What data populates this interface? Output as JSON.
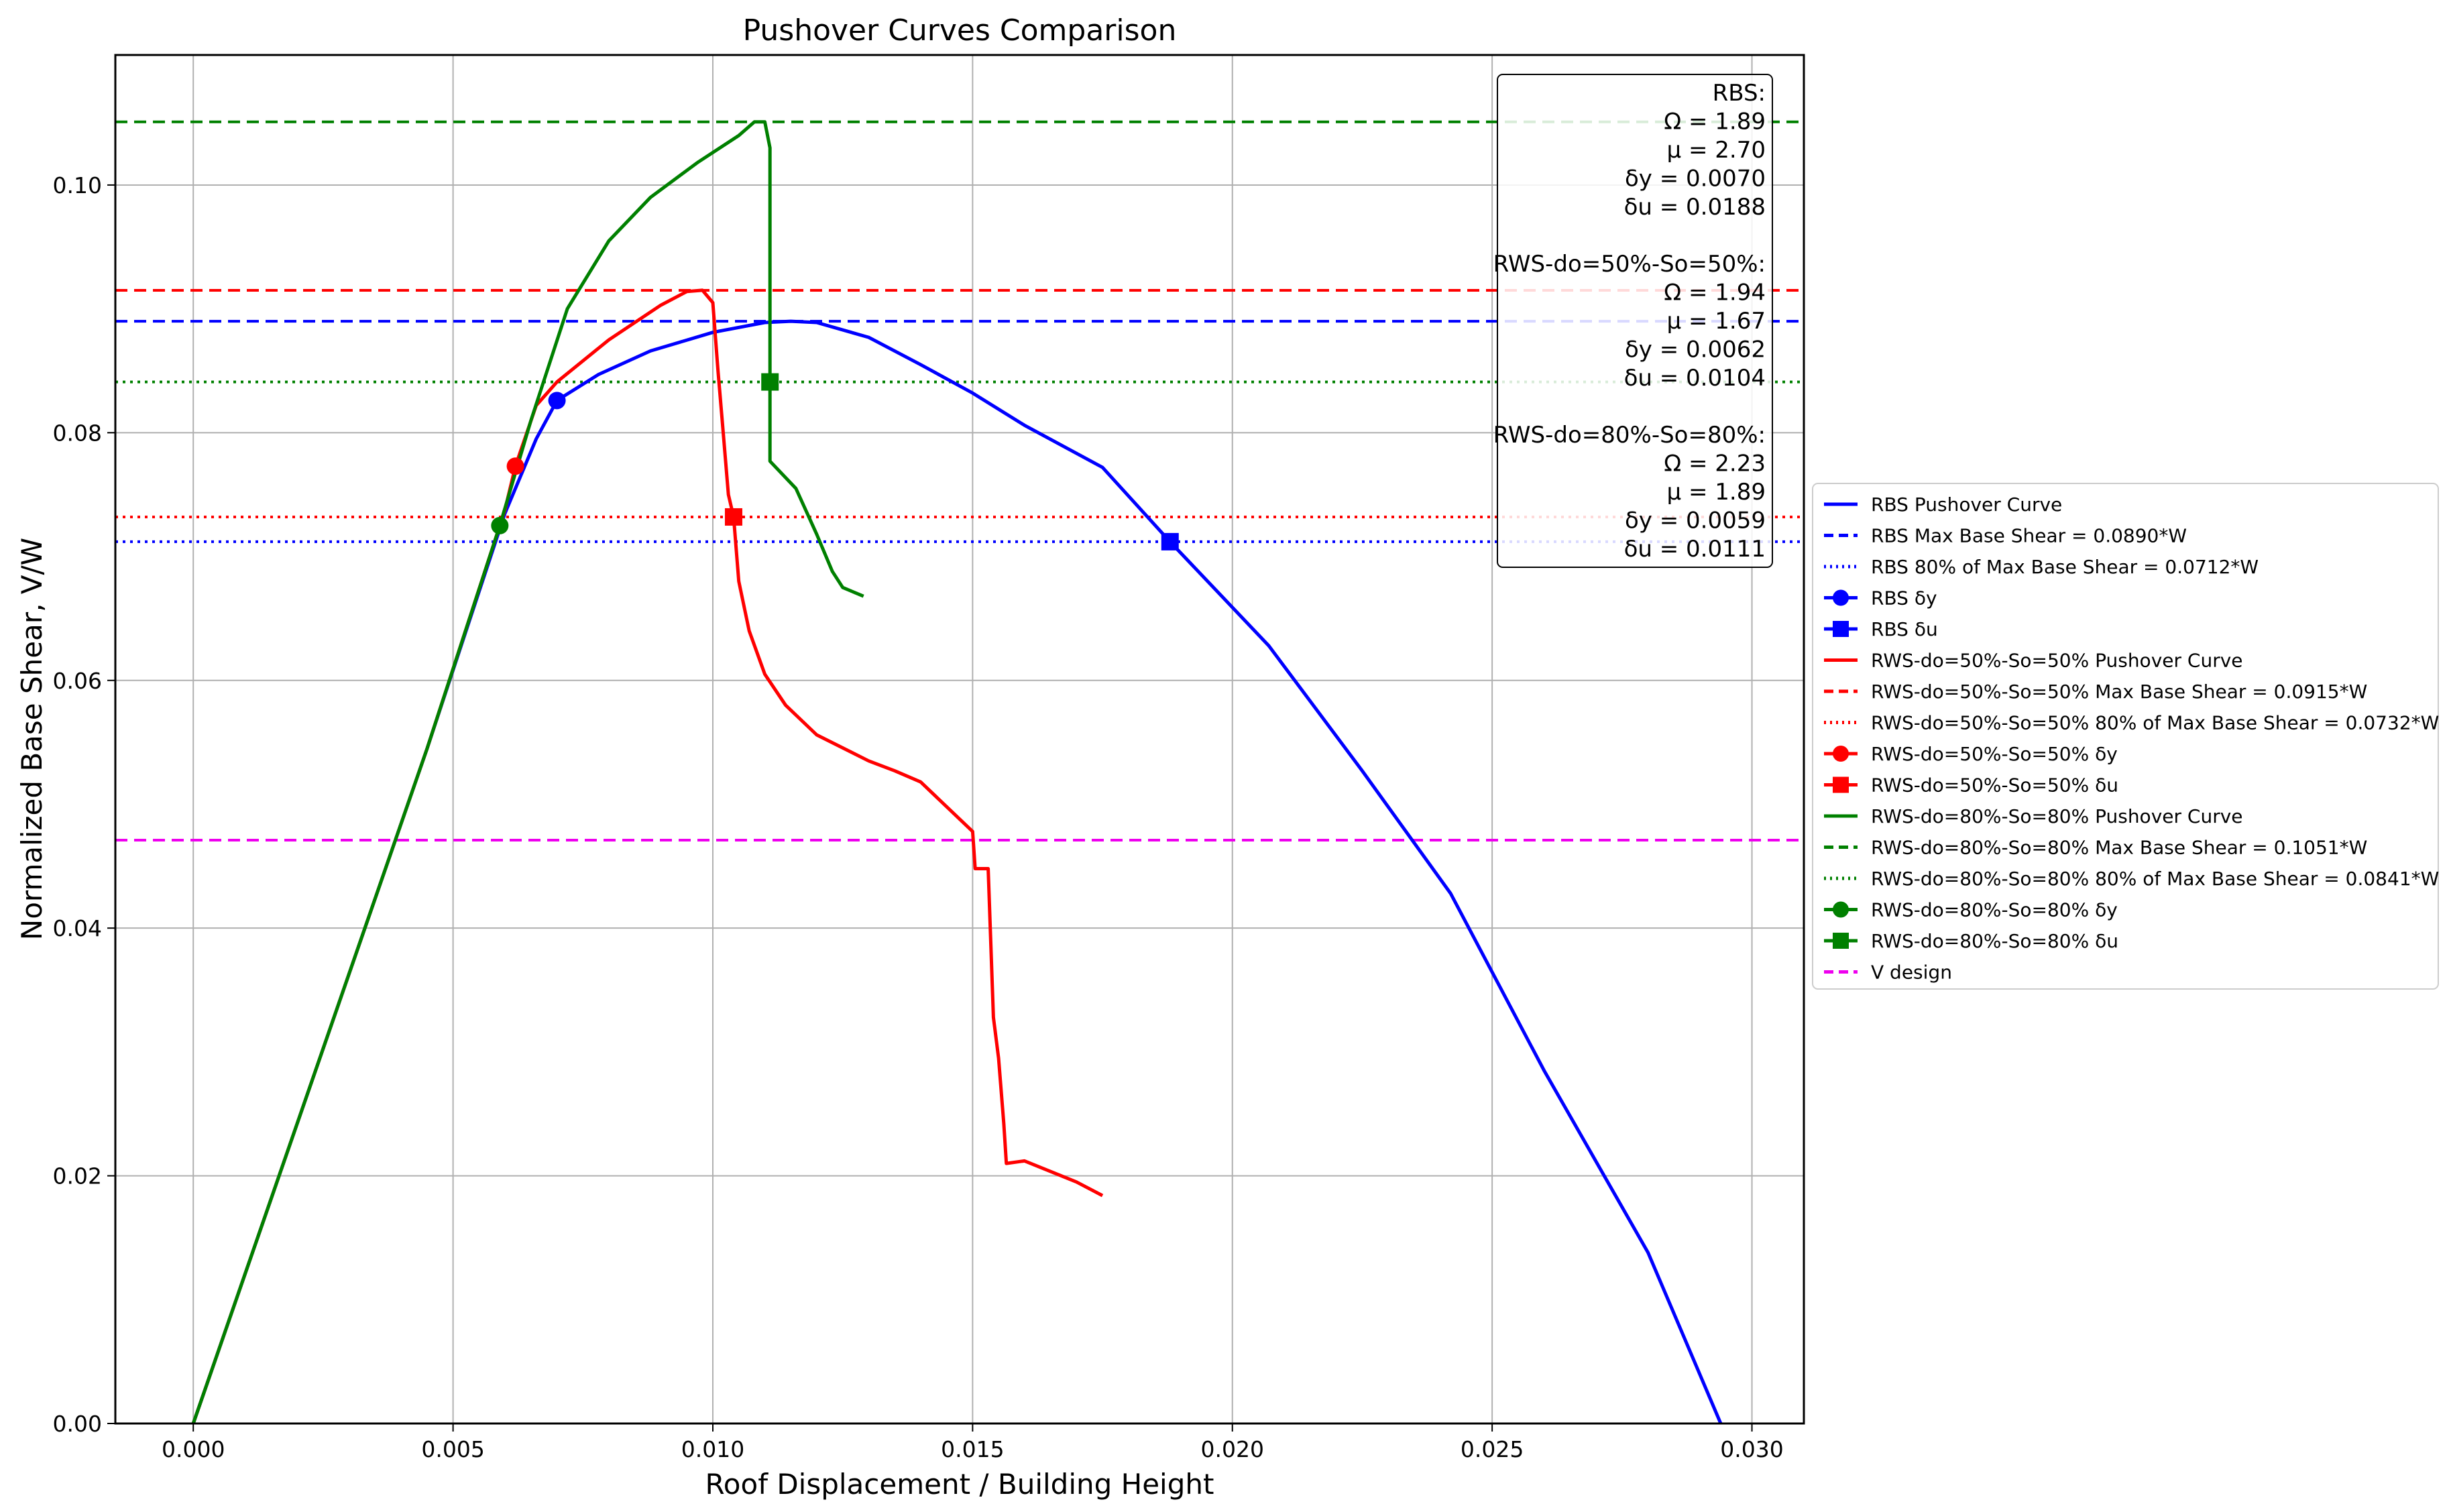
{
  "chart_data": {
    "type": "line",
    "title": "Pushover Curves Comparison",
    "xlabel": "Roof Displacement / Building Height",
    "ylabel": "Normalized Base Shear, V/W",
    "xlim": [
      -0.0015,
      0.031
    ],
    "ylim": [
      0,
      0.1105
    ],
    "x_ticks": [
      0.0,
      0.005,
      0.01,
      0.015,
      0.02,
      0.025,
      0.03
    ],
    "x_tick_labels": [
      "0.000",
      "0.005",
      "0.010",
      "0.015",
      "0.020",
      "0.025",
      "0.030"
    ],
    "y_ticks": [
      0.0,
      0.02,
      0.04,
      0.06,
      0.08,
      0.1
    ],
    "y_tick_labels": [
      "0.00",
      "0.02",
      "0.04",
      "0.06",
      "0.08",
      "0.10"
    ],
    "grid": true,
    "legend_placement": "outside-right",
    "colors": {
      "rbs": "#0000ff",
      "rws50": "#ff0000",
      "rws80": "#008000",
      "vdesign": "#ee00ee"
    },
    "series": [
      {
        "name": "RBS Pushover Curve",
        "kind": "curve",
        "color": "#0000ff",
        "points": [
          [
            0,
            0
          ],
          [
            0.0045,
            0.0545
          ],
          [
            0.006,
            0.0735
          ],
          [
            0.0066,
            0.0795
          ],
          [
            0.007,
            0.0826
          ],
          [
            0.0078,
            0.0847
          ],
          [
            0.0088,
            0.0866
          ],
          [
            0.01,
            0.0881
          ],
          [
            0.011,
            0.0889
          ],
          [
            0.0115,
            0.089
          ],
          [
            0.012,
            0.0889
          ],
          [
            0.013,
            0.0877
          ],
          [
            0.014,
            0.0855
          ],
          [
            0.015,
            0.0832
          ],
          [
            0.016,
            0.0806
          ],
          [
            0.0175,
            0.0772
          ],
          [
            0.0188,
            0.0712
          ],
          [
            0.0207,
            0.0628
          ],
          [
            0.0225,
            0.0527
          ],
          [
            0.0242,
            0.0428
          ],
          [
            0.026,
            0.0285
          ],
          [
            0.028,
            0.0138
          ],
          [
            0.0294,
            0.0
          ]
        ]
      },
      {
        "name": "RBS Max Base Shear = 0.0890*W",
        "kind": "hline",
        "style": "dashed",
        "color": "#0000ff",
        "y": 0.089
      },
      {
        "name": "RBS 80% of Max Base Shear = 0.0712*W",
        "kind": "hline",
        "style": "dotted",
        "color": "#0000ff",
        "y": 0.0712
      },
      {
        "name": "RBS δy",
        "kind": "marker",
        "marker": "circle",
        "color": "#0000ff",
        "x": 0.007,
        "y": 0.0826
      },
      {
        "name": "RBS δu",
        "kind": "marker",
        "marker": "square",
        "color": "#0000ff",
        "x": 0.0188,
        "y": 0.0712
      },
      {
        "name": "RWS-do=50%-So=50% Pushover Curve",
        "kind": "curve",
        "color": "#ff0000",
        "points": [
          [
            0,
            0
          ],
          [
            0.0045,
            0.0545
          ],
          [
            0.006,
            0.0738
          ],
          [
            0.0062,
            0.0773
          ],
          [
            0.0066,
            0.0822
          ],
          [
            0.007,
            0.0841
          ],
          [
            0.008,
            0.0875
          ],
          [
            0.009,
            0.0903
          ],
          [
            0.0095,
            0.0914
          ],
          [
            0.0098,
            0.0915
          ],
          [
            0.01,
            0.0905
          ],
          [
            0.0101,
            0.085
          ],
          [
            0.0102,
            0.08
          ],
          [
            0.0103,
            0.075
          ],
          [
            0.0104,
            0.0732
          ],
          [
            0.0105,
            0.068
          ],
          [
            0.0107,
            0.064
          ],
          [
            0.011,
            0.0605
          ],
          [
            0.0114,
            0.058
          ],
          [
            0.012,
            0.0556
          ],
          [
            0.013,
            0.0535
          ],
          [
            0.0135,
            0.0527
          ],
          [
            0.014,
            0.0518
          ],
          [
            0.015,
            0.0478
          ],
          [
            0.01505,
            0.0448
          ],
          [
            0.0153,
            0.0448
          ],
          [
            0.0154,
            0.0328
          ],
          [
            0.0155,
            0.0295
          ],
          [
            0.0156,
            0.0242
          ],
          [
            0.01565,
            0.021
          ],
          [
            0.016,
            0.0212
          ],
          [
            0.017,
            0.0195
          ],
          [
            0.0175,
            0.0184
          ]
        ]
      },
      {
        "name": "RWS-do=50%-So=50% Max Base Shear = 0.0915*W",
        "kind": "hline",
        "style": "dashed",
        "color": "#ff0000",
        "y": 0.0915
      },
      {
        "name": "RWS-do=50%-So=50% 80% of Max Base Shear = 0.0732*W",
        "kind": "hline",
        "style": "dotted",
        "color": "#ff0000",
        "y": 0.0732
      },
      {
        "name": "RWS-do=50%-So=50% δy",
        "kind": "marker",
        "marker": "circle",
        "color": "#ff0000",
        "x": 0.0062,
        "y": 0.0773
      },
      {
        "name": "RWS-do=50%-So=50% δu",
        "kind": "marker",
        "marker": "square",
        "color": "#ff0000",
        "x": 0.0104,
        "y": 0.0732
      },
      {
        "name": "RWS-do=80%-So=80% Pushover Curve",
        "kind": "curve",
        "color": "#008000",
        "points": [
          [
            0,
            0
          ],
          [
            0.0045,
            0.0545
          ],
          [
            0.0059,
            0.0725
          ],
          [
            0.0065,
            0.081
          ],
          [
            0.0072,
            0.09
          ],
          [
            0.008,
            0.0955
          ],
          [
            0.0088,
            0.099
          ],
          [
            0.0097,
            0.1018
          ],
          [
            0.0105,
            0.104
          ],
          [
            0.0108,
            0.1051
          ],
          [
            0.011,
            0.1051
          ],
          [
            0.0111,
            0.103
          ],
          [
            0.0111,
            0.0841
          ],
          [
            0.0111,
            0.0777
          ],
          [
            0.0116,
            0.0755
          ],
          [
            0.012,
            0.0718
          ],
          [
            0.0123,
            0.0688
          ],
          [
            0.0125,
            0.0675
          ],
          [
            0.0129,
            0.0668
          ]
        ]
      },
      {
        "name": "RWS-do=80%-So=80% Max Base Shear = 0.1051*W",
        "kind": "hline",
        "style": "dashed",
        "color": "#008000",
        "y": 0.1051
      },
      {
        "name": "RWS-do=80%-So=80% 80% of Max Base Shear = 0.0841*W",
        "kind": "hline",
        "style": "dotted",
        "color": "#008000",
        "y": 0.0841
      },
      {
        "name": "RWS-do=80%-So=80% δy",
        "kind": "marker",
        "marker": "circle",
        "color": "#008000",
        "x": 0.0059,
        "y": 0.0725
      },
      {
        "name": "RWS-do=80%-So=80% δu",
        "kind": "marker",
        "marker": "square",
        "color": "#008000",
        "x": 0.0111,
        "y": 0.0841
      },
      {
        "name": "V design",
        "kind": "hline",
        "style": "dashed",
        "color": "#ee00ee",
        "y": 0.0471
      }
    ],
    "annotation": [
      "RBS:",
      "Ω = 1.89",
      "μ = 2.70",
      "δy = 0.0070",
      "δu = 0.0188",
      "",
      "RWS-do=50%-So=50%:",
      "Ω = 1.94",
      "μ = 1.67",
      "δy = 0.0062",
      "δu = 0.0104",
      "",
      "RWS-do=80%-So=80%:",
      "Ω = 2.23",
      "μ = 1.89",
      "δy = 0.0059",
      "δu = 0.0111"
    ]
  }
}
